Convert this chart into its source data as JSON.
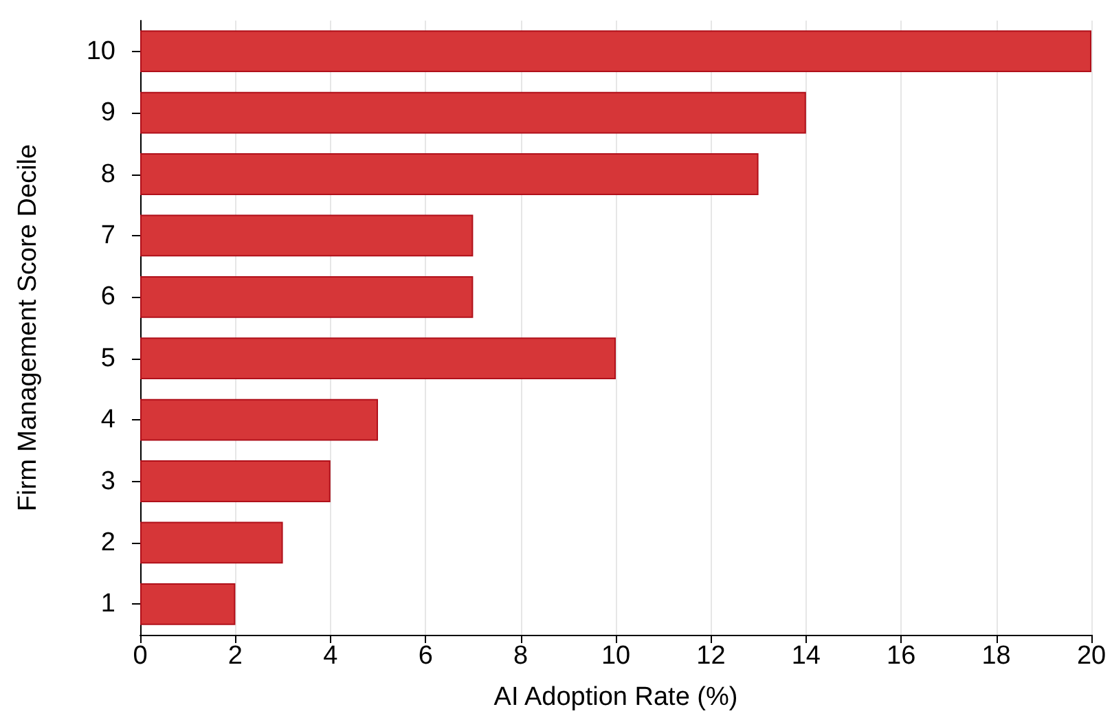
{
  "chart_data": {
    "type": "bar",
    "orientation": "horizontal",
    "xlabel": "AI Adoption Rate (%)",
    "ylabel": "Firm Management Score Decile",
    "categories": [
      "10",
      "9",
      "8",
      "7",
      "6",
      "5",
      "4",
      "3",
      "2",
      "1"
    ],
    "values": [
      20,
      14,
      13,
      7,
      7,
      10,
      5,
      4,
      3,
      2
    ],
    "color": "#d63638",
    "xlim": [
      0,
      20
    ],
    "xticks": [
      0,
      2,
      4,
      6,
      8,
      10,
      12,
      14,
      16,
      18,
      20
    ],
    "grid": "x"
  }
}
